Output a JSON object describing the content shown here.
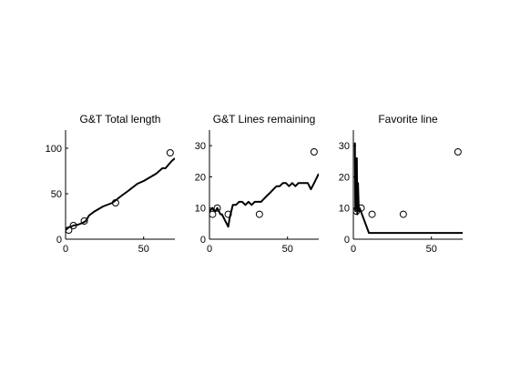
{
  "chart_data": [
    {
      "type": "line",
      "title": "G&T Total length",
      "xlim": [
        0,
        70
      ],
      "ylim": [
        0,
        120
      ],
      "xticks": [
        0,
        50
      ],
      "yticks": [
        0,
        50,
        100
      ],
      "grid": false,
      "series": [
        {
          "style": "line",
          "x": [
            0,
            2,
            5,
            8,
            11,
            13,
            15,
            18,
            21,
            24,
            27,
            30,
            33,
            36,
            40,
            43,
            46,
            50,
            54,
            58,
            62,
            64,
            66,
            68,
            70
          ],
          "y": [
            10,
            13,
            15,
            16,
            18,
            20,
            26,
            30,
            33,
            36,
            38,
            40,
            44,
            48,
            53,
            57,
            61,
            64,
            68,
            72,
            78,
            78,
            82,
            86,
            89
          ]
        },
        {
          "style": "markers",
          "x": [
            2,
            5,
            12,
            32,
            67
          ],
          "y": [
            10,
            15,
            20,
            40,
            95
          ]
        }
      ]
    },
    {
      "type": "line",
      "title": "G&T Lines remaining",
      "xlim": [
        0,
        70
      ],
      "ylim": [
        0,
        35
      ],
      "xticks": [
        0,
        50
      ],
      "yticks": [
        0,
        10,
        20,
        30
      ],
      "grid": false,
      "series": [
        {
          "style": "line",
          "x": [
            0,
            2,
            3,
            4,
            5,
            6,
            7,
            8,
            9,
            10,
            11,
            12,
            13,
            14,
            15,
            17,
            19,
            21,
            23,
            25,
            27,
            29,
            31,
            33,
            35,
            37,
            39,
            41,
            43,
            45,
            47,
            49,
            51,
            53,
            55,
            57,
            59,
            61,
            63,
            65,
            67,
            69,
            70
          ],
          "y": [
            9,
            10,
            9,
            9,
            10,
            9,
            8,
            8,
            7,
            6,
            5,
            4,
            7,
            9,
            11,
            11,
            12,
            12,
            11,
            12,
            11,
            12,
            12,
            12,
            13,
            14,
            15,
            16,
            17,
            17,
            18,
            18,
            17,
            18,
            17,
            18,
            18,
            18,
            18,
            16,
            18,
            20,
            21
          ]
        },
        {
          "style": "markers",
          "x": [
            2,
            5,
            12,
            32,
            67
          ],
          "y": [
            8,
            10,
            8,
            8,
            28
          ]
        }
      ]
    },
    {
      "type": "line",
      "title": "Favorite line",
      "xlim": [
        0,
        70
      ],
      "ylim": [
        0,
        35
      ],
      "xticks": [
        0,
        50
      ],
      "yticks": [
        0,
        10,
        20,
        30
      ],
      "grid": false,
      "series": [
        {
          "style": "line",
          "x": [
            1,
            1.3,
            1.6,
            1.9,
            2.2,
            2.5,
            3,
            3.5,
            4,
            10,
            70
          ],
          "y": [
            31,
            9,
            24,
            10,
            26,
            8,
            18,
            9,
            10,
            2,
            2
          ]
        },
        {
          "style": "markers",
          "x": [
            2,
            5,
            12,
            32,
            67
          ],
          "y": [
            9,
            10,
            8,
            8,
            28
          ]
        }
      ]
    }
  ]
}
